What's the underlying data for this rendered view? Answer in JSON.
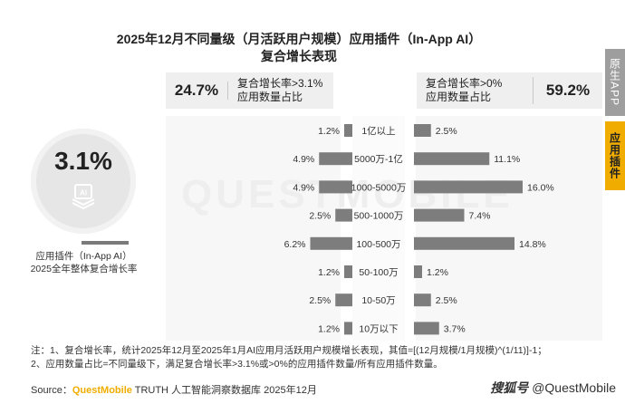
{
  "title_line1": "2025年12月不同量级（月活跃用户规模）应用插件（In-App AI）",
  "title_line2": "复合增长表现",
  "side_tabs": [
    "原生APP",
    "应用插件"
  ],
  "kpi_left": {
    "value": "24.7%",
    "label_line1": "复合增长率>3.1%",
    "label_line2": "应用数量占比"
  },
  "kpi_right": {
    "value": "59.2%",
    "label_line1": "复合增长率>0%",
    "label_line2": "应用数量占比"
  },
  "overall": {
    "value": "3.1%",
    "caption_line1": "应用插件（In-App AI）",
    "caption_line2": "2025全年整体复合增长率",
    "icon_text": "AI"
  },
  "watermark": "QUESTMOBILE",
  "colors": {
    "bar": "#7d7d7d",
    "accent": "#f0ad00",
    "tab_gray": "#9e9e9e"
  },
  "chart_data": {
    "type": "bar",
    "orientation": "horizontal-diverging",
    "categories": [
      "1亿以上",
      "5000万-1亿",
      "1000-5000万",
      "500-1000万",
      "100-500万",
      "50-100万",
      "10-50万",
      "10万以下"
    ],
    "series": [
      {
        "name": "复合增长率>3.1%应用数量占比",
        "values": [
          1.2,
          4.9,
          4.9,
          2.5,
          6.2,
          1.2,
          2.5,
          1.2
        ],
        "labels": [
          "1.2%",
          "4.9%",
          "4.9%",
          "2.5%",
          "6.2%",
          "1.2%",
          "2.5%",
          "1.2%"
        ]
      },
      {
        "name": "复合增长率>0%应用数量占比",
        "values": [
          2.5,
          11.1,
          16.0,
          7.4,
          14.8,
          1.2,
          2.5,
          3.7
        ],
        "labels": [
          "2.5%",
          "11.1%",
          "16.0%",
          "7.4%",
          "14.8%",
          "1.2%",
          "2.5%",
          "3.7%"
        ]
      }
    ]
  },
  "notes": {
    "line1": "注：1、复合增长率，统计2025年12月至2025年1月AI应用月活跃用户规模增长表现，其值=[(12月规模/1月规模)^(1/11)]-1；",
    "line2": "2、应用数量占比=不同量级下，满足复合增长率>3.1%或>0%的应用插件数量/所有应用插件数量。"
  },
  "source": {
    "prefix": "Source：",
    "brand": "QuestMobile",
    "rest": " TRUTH 人工智能洞察数据库 2025年12月"
  },
  "logo": {
    "mark": "搜狐号",
    "text": "@QuestMobile"
  }
}
